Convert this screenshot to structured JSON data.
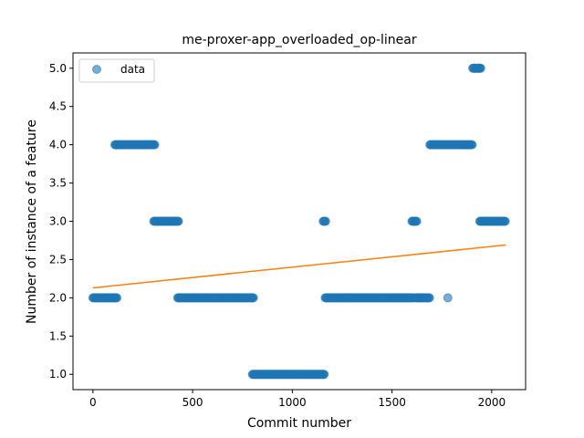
{
  "chart_data": {
    "type": "scatter",
    "title": "me-proxer-app_overloaded_op-linear",
    "xlabel": "Commit number",
    "ylabel": "Number of instance of a feature",
    "xlim": [
      -100,
      2170
    ],
    "ylim": [
      0.8,
      5.2
    ],
    "xticks": [
      0,
      500,
      1000,
      1500,
      2000
    ],
    "yticks": [
      1.0,
      1.5,
      2.0,
      2.5,
      3.0,
      3.5,
      4.0,
      4.5,
      5.0
    ],
    "xtick_labels": [
      "0",
      "500",
      "1000",
      "1500",
      "2000"
    ],
    "ytick_labels": [
      "1.0",
      "1.5",
      "2.0",
      "2.5",
      "3.0",
      "3.5",
      "4.0",
      "4.5",
      "5.0"
    ],
    "legend": {
      "entries": [
        "data"
      ],
      "placement": "upper-left"
    },
    "series": [
      {
        "name": "data",
        "mark": "circle",
        "color": "#1f77b4",
        "runs": [
          {
            "x_start": 0,
            "x_end": 120,
            "y": 2.0
          },
          {
            "x_start": 110,
            "x_end": 310,
            "y": 4.0
          },
          {
            "x_start": 305,
            "x_end": 430,
            "y": 3.0
          },
          {
            "x_start": 425,
            "x_end": 805,
            "y": 2.0
          },
          {
            "x_start": 800,
            "x_end": 1160,
            "y": 1.0
          },
          {
            "x_start": 1155,
            "x_end": 1170,
            "y": 3.0
          },
          {
            "x_start": 1165,
            "x_end": 1610,
            "y": 2.0
          },
          {
            "x_start": 1600,
            "x_end": 1625,
            "y": 3.0
          },
          {
            "x_start": 1620,
            "x_end": 1690,
            "y": 2.0
          },
          {
            "x_start": 1690,
            "x_end": 1905,
            "y": 4.0
          },
          {
            "x_start": 1905,
            "x_end": 1945,
            "y": 5.0
          },
          {
            "x_start": 1940,
            "x_end": 2070,
            "y": 3.0
          }
        ],
        "points": [
          {
            "x": 1780,
            "y": 2.0
          }
        ]
      },
      {
        "name": "linear fit",
        "mark": "line",
        "color": "#ff7f0e",
        "x": [
          0,
          2070
        ],
        "y": [
          2.13,
          2.69
        ]
      }
    ]
  }
}
